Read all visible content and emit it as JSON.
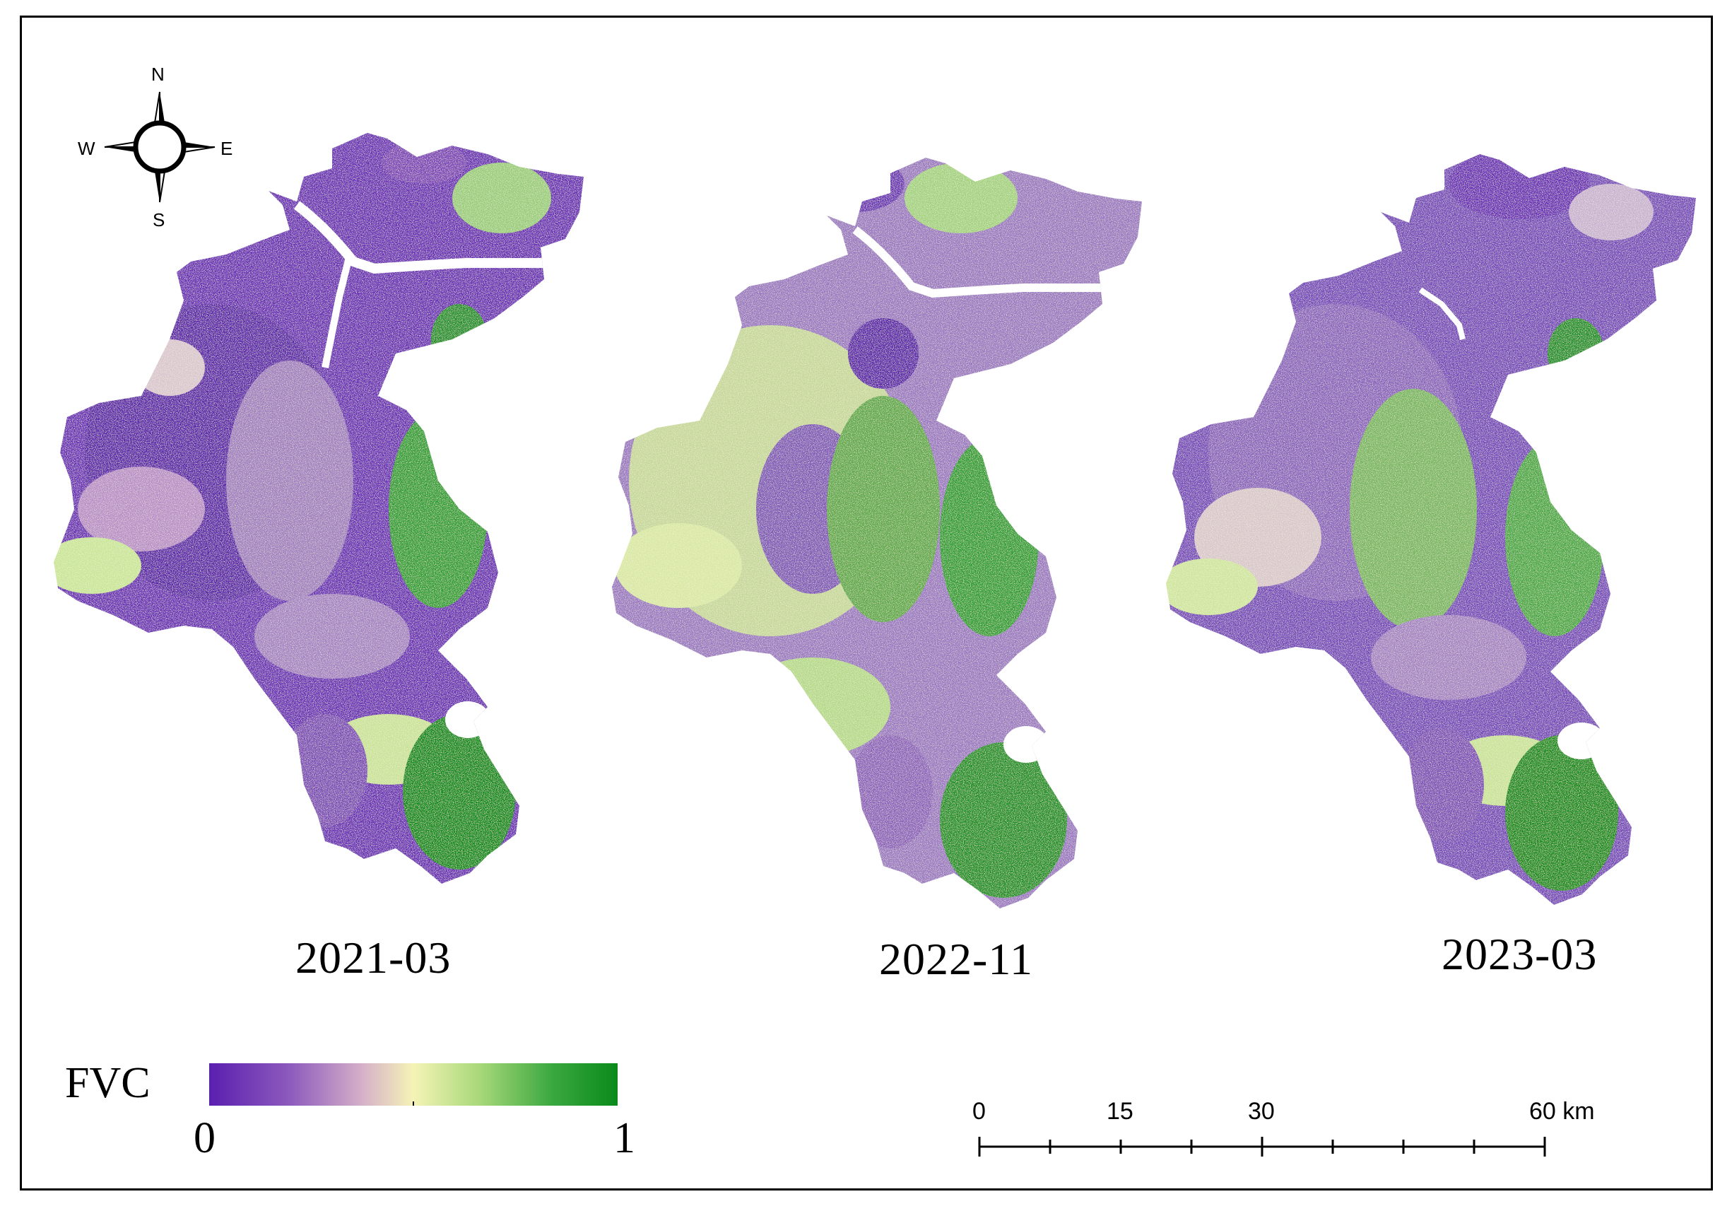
{
  "compass": {
    "north": "N",
    "south": "S",
    "east": "E",
    "west": "W"
  },
  "panels": [
    {
      "label": "2021-03"
    },
    {
      "label": "2022-11"
    },
    {
      "label": "2023-03"
    }
  ],
  "legend": {
    "title": "FVC",
    "min_label": "0",
    "max_label": "1",
    "colors": [
      "#5a1fb0",
      "#8e5bbd",
      "#d7b3c9",
      "#f5f3b6",
      "#a9d97a",
      "#3aa840",
      "#0a8a1a"
    ]
  },
  "scale_bar": {
    "ticks": [
      "0",
      "15",
      "30",
      "60 km"
    ]
  }
}
